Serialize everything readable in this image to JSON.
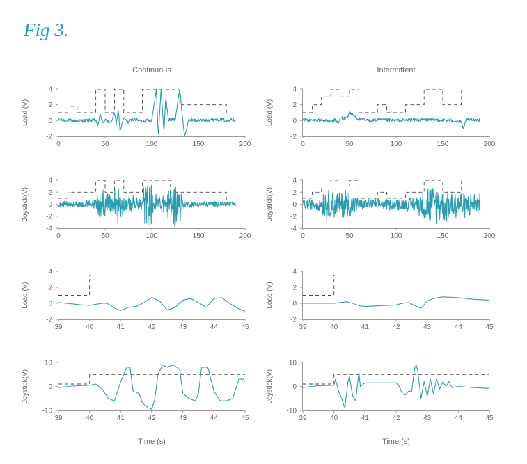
{
  "figure": {
    "title": "Fig 3."
  },
  "colors": {
    "trace": "#2a9db1",
    "dash": "#444444",
    "axis": "#9a9a9a",
    "text": "#666666",
    "title": "#1aa5ad"
  },
  "columns": [
    "Continuous",
    "Intermittent"
  ],
  "xlabel": "Time (s)",
  "chart_data": [
    {
      "type": "line",
      "column": "Continuous",
      "row": 1,
      "ylabel": "Load (V)",
      "xlim": [
        0,
        200
      ],
      "ylim": [
        -2,
        4
      ],
      "xticks": [
        0,
        50,
        100,
        150,
        200
      ],
      "yticks": [
        -2,
        0,
        2,
        4
      ],
      "series": [
        {
          "style": "dashed",
          "x": [
            0,
            10,
            10,
            20,
            20,
            40,
            40,
            50,
            50,
            60,
            60,
            70,
            70,
            90,
            90,
            130,
            130,
            180,
            180
          ],
          "y": [
            1,
            1,
            1.8,
            1.8,
            1,
            1,
            4,
            4,
            1,
            1,
            4,
            4,
            1,
            1,
            4,
            4,
            2,
            2,
            0.8
          ]
        },
        {
          "style": "solid",
          "kind": "signal",
          "x": [
            0,
            20,
            40,
            42,
            45,
            48,
            50,
            55,
            58,
            60,
            62,
            64,
            66,
            70,
            75,
            80,
            90,
            100,
            103,
            105,
            107,
            110,
            113,
            115,
            118,
            120,
            125,
            130,
            135,
            140,
            150,
            160,
            175,
            180,
            185,
            190
          ],
          "y": [
            0.1,
            -0.05,
            0.05,
            -0.6,
            0.8,
            -0.5,
            0.3,
            -0.4,
            0.2,
            1.1,
            -0.6,
            1.5,
            -1.3,
            0.3,
            -0.2,
            0.2,
            -0.1,
            0.1,
            2.5,
            4,
            -2,
            4,
            -1.5,
            3,
            0,
            0.2,
            0.1,
            4,
            -2,
            0.1,
            0,
            0.1,
            0.2,
            -0.1,
            0.3,
            0
          ]
        }
      ]
    },
    {
      "type": "line",
      "column": "Intermittent",
      "row": 1,
      "ylabel": "Load (V)",
      "xlim": [
        0,
        200
      ],
      "ylim": [
        -2,
        4
      ],
      "xticks": [
        0,
        50,
        100,
        150,
        200
      ],
      "yticks": [
        -2,
        0,
        2,
        4
      ],
      "series": [
        {
          "style": "dashed",
          "x": [
            0,
            10,
            10,
            20,
            20,
            30,
            30,
            40,
            40,
            50,
            50,
            60,
            60,
            80,
            80,
            90,
            90,
            110,
            110,
            130,
            130,
            150,
            150,
            170,
            170
          ],
          "y": [
            1,
            1,
            2,
            2,
            3,
            3,
            4,
            4,
            3,
            3,
            4,
            4,
            1,
            1,
            2,
            2,
            1,
            1,
            2,
            2,
            4,
            4,
            2,
            2,
            4
          ]
        },
        {
          "style": "solid",
          "kind": "signal",
          "x": [
            0,
            10,
            20,
            30,
            35,
            38,
            40,
            42,
            45,
            48,
            50,
            55,
            60,
            70,
            80,
            100,
            120,
            140,
            160,
            170,
            172,
            175,
            180,
            190
          ],
          "y": [
            0.1,
            0,
            0.1,
            -0.2,
            0.1,
            -0.3,
            0.2,
            0.4,
            0.2,
            0.5,
            1,
            0.6,
            0.2,
            0,
            0.1,
            0,
            0.1,
            0.1,
            0,
            -0.2,
            -1.2,
            0.1,
            0.1,
            0.1
          ]
        }
      ]
    },
    {
      "type": "line",
      "column": "Continuous",
      "row": 2,
      "ylabel": "Joystick(V)",
      "xlim": [
        0,
        200
      ],
      "ylim": [
        -4,
        4
      ],
      "xticks": [
        0,
        50,
        100,
        150,
        200
      ],
      "yticks": [
        -4,
        -2,
        0,
        2,
        4
      ],
      "series": [
        {
          "style": "dashed",
          "x": [
            0,
            10,
            10,
            40,
            40,
            50,
            50,
            60,
            60,
            70,
            70,
            90,
            90,
            120,
            120,
            130,
            130,
            180,
            180
          ],
          "y": [
            1,
            1,
            2,
            2,
            4,
            4,
            2,
            2,
            4,
            4,
            2,
            2,
            4,
            4,
            2,
            2,
            2,
            2,
            0
          ]
        },
        {
          "style": "solid",
          "kind": "noise",
          "x": [
            0,
            40,
            41,
            48,
            50,
            58,
            60,
            62,
            68,
            70,
            90,
            91,
            100,
            101,
            110,
            116,
            118,
            122,
            125,
            130,
            135,
            190
          ],
          "amplitude": [
            0.5,
            0.8,
            3,
            3,
            2,
            2,
            4,
            4,
            3,
            1.5,
            1.5,
            4,
            4,
            2,
            2,
            2,
            4,
            4,
            4,
            4,
            0.6,
            0.5
          ]
        }
      ]
    },
    {
      "type": "line",
      "column": "Intermittent",
      "row": 2,
      "ylabel": "Joystick(V)",
      "xlim": [
        0,
        200
      ],
      "ylim": [
        -4,
        4
      ],
      "xticks": [
        0,
        50,
        100,
        150,
        200
      ],
      "yticks": [
        -4,
        -2,
        0,
        2,
        4
      ],
      "series": [
        {
          "style": "dashed",
          "x": [
            0,
            10,
            10,
            20,
            20,
            30,
            30,
            40,
            40,
            50,
            50,
            60,
            60,
            80,
            80,
            90,
            90,
            110,
            110,
            130,
            130,
            150,
            150,
            170,
            170
          ],
          "y": [
            1,
            1,
            2,
            2,
            3,
            3,
            4,
            4,
            3,
            3,
            4,
            4,
            1,
            1,
            2,
            2,
            1,
            1,
            2,
            2,
            4,
            4,
            2,
            2,
            4
          ]
        },
        {
          "style": "solid",
          "kind": "noise",
          "x": [
            0,
            20,
            22,
            40,
            45,
            60,
            80,
            100,
            120,
            128,
            132,
            140,
            150,
            160,
            175,
            190
          ],
          "amplitude": [
            1,
            1.2,
            3,
            2.5,
            3.5,
            1.2,
            1,
            1.2,
            1.4,
            2.5,
            4,
            3.5,
            3.5,
            3,
            2.5,
            2
          ]
        }
      ]
    },
    {
      "type": "line",
      "column": "Continuous",
      "row": 3,
      "ylabel": "Load (V)",
      "xlim": [
        39,
        45
      ],
      "ylim": [
        -2,
        4
      ],
      "xticks": [
        39,
        40,
        41,
        42,
        43,
        44,
        45
      ],
      "yticks": [
        -2,
        0,
        2,
        4
      ],
      "series": [
        {
          "style": "dashed",
          "x": [
            39,
            40,
            40,
            40.05
          ],
          "y": [
            1,
            1,
            3.5,
            3.5
          ]
        },
        {
          "style": "solid",
          "x": [
            39,
            39.25,
            39.5,
            39.75,
            40,
            40.25,
            40.4,
            40.55,
            40.7,
            40.85,
            41,
            41.25,
            41.5,
            41.75,
            42,
            42.25,
            42.5,
            42.75,
            43,
            43.25,
            43.5,
            43.75,
            44,
            44.25,
            44.5,
            44.75,
            45
          ],
          "y": [
            0.1,
            0,
            -0.1,
            -0.2,
            -0.25,
            -0.1,
            0,
            0,
            -0.3,
            -0.7,
            -0.9,
            -0.5,
            -0.4,
            0.1,
            0.75,
            0.3,
            -0.85,
            -0.5,
            0.4,
            0.6,
            0.1,
            -0.5,
            0.6,
            0.7,
            0,
            -0.6,
            -1
          ]
        }
      ]
    },
    {
      "type": "line",
      "column": "Intermittent",
      "row": 3,
      "ylabel": "Load (V)",
      "xlim": [
        39,
        45
      ],
      "ylim": [
        -2,
        4
      ],
      "xticks": [
        39,
        40,
        41,
        42,
        43,
        44,
        45
      ],
      "yticks": [
        -2,
        0,
        2,
        4
      ],
      "series": [
        {
          "style": "dashed",
          "x": [
            39,
            40,
            40,
            40.05
          ],
          "y": [
            1,
            1,
            3.5,
            3.5
          ]
        },
        {
          "style": "solid",
          "x": [
            39,
            39.5,
            40,
            40.2,
            40.4,
            40.6,
            40.8,
            41,
            41.5,
            42,
            42.2,
            42.4,
            42.6,
            42.8,
            43,
            43.2,
            43.5,
            44,
            44.5,
            45
          ],
          "y": [
            0,
            0,
            0,
            0.1,
            0.2,
            0,
            -0.3,
            -0.4,
            -0.3,
            -0.2,
            0,
            0.1,
            -0.3,
            -0.6,
            0.3,
            0.6,
            0.8,
            0.7,
            0.5,
            0.4
          ]
        }
      ]
    },
    {
      "type": "line",
      "column": "Continuous",
      "row": 4,
      "ylabel": "Joystick(V)",
      "xlim": [
        39,
        45
      ],
      "ylim": [
        -10,
        10
      ],
      "xticks": [
        39,
        40,
        41,
        42,
        43,
        44,
        45
      ],
      "yticks": [
        -10,
        0,
        10
      ],
      "series": [
        {
          "style": "dashed",
          "x": [
            39,
            40,
            40,
            45
          ],
          "y": [
            1,
            1,
            5,
            5
          ]
        },
        {
          "style": "solid",
          "x": [
            39,
            39.3,
            39.6,
            40,
            40.2,
            40.4,
            40.5,
            40.6,
            40.8,
            41,
            41.2,
            41.3,
            41.4,
            41.6,
            41.7,
            41.8,
            41.9,
            42,
            42.1,
            42.2,
            42.35,
            42.5,
            42.7,
            42.9,
            43,
            43.2,
            43.4,
            43.5,
            43.6,
            43.8,
            44,
            44.2,
            44.4,
            44.6,
            44.8,
            44.95,
            45
          ],
          "y": [
            -0.5,
            0,
            0.3,
            0.5,
            1,
            -1,
            -3,
            -5,
            -6,
            2,
            8,
            8,
            -2,
            -3,
            -7,
            -8,
            -9,
            -9.5,
            -5,
            5,
            9,
            8,
            9,
            7,
            -3,
            -5,
            -6,
            -3,
            8,
            8,
            -2,
            -6,
            -6,
            -5,
            3,
            3,
            2
          ]
        }
      ]
    },
    {
      "type": "line",
      "column": "Intermittent",
      "row": 4,
      "ylabel": "Joystick(V)",
      "xlim": [
        39,
        45
      ],
      "ylim": [
        -10,
        10
      ],
      "xticks": [
        39,
        40,
        41,
        42,
        43,
        44,
        45
      ],
      "yticks": [
        -10,
        0,
        10
      ],
      "series": [
        {
          "style": "dashed",
          "x": [
            39,
            40,
            40,
            45
          ],
          "y": [
            1,
            1,
            5,
            5
          ]
        },
        {
          "style": "solid",
          "x": [
            39,
            39.5,
            40,
            40.05,
            40.15,
            40.25,
            40.35,
            40.45,
            40.5,
            40.6,
            40.7,
            40.8,
            40.85,
            41,
            41.5,
            42,
            42.1,
            42.2,
            42.3,
            42.4,
            42.5,
            42.6,
            42.65,
            42.7,
            42.8,
            42.9,
            43,
            43.1,
            43.2,
            43.3,
            43.4,
            43.5,
            43.6,
            43.7,
            43.8,
            44,
            44.5,
            45
          ],
          "y": [
            -0.5,
            0.3,
            0.5,
            3,
            -2,
            -5,
            -9,
            2,
            4,
            -4,
            -6,
            6,
            0,
            1.5,
            1.5,
            1.5,
            0,
            -3,
            -3.5,
            -2,
            -2,
            8,
            9,
            6,
            -5,
            2,
            -4,
            3,
            -3,
            3,
            -1,
            2,
            0,
            2,
            -0.5,
            0,
            -0.5,
            -0.8
          ]
        }
      ]
    }
  ]
}
